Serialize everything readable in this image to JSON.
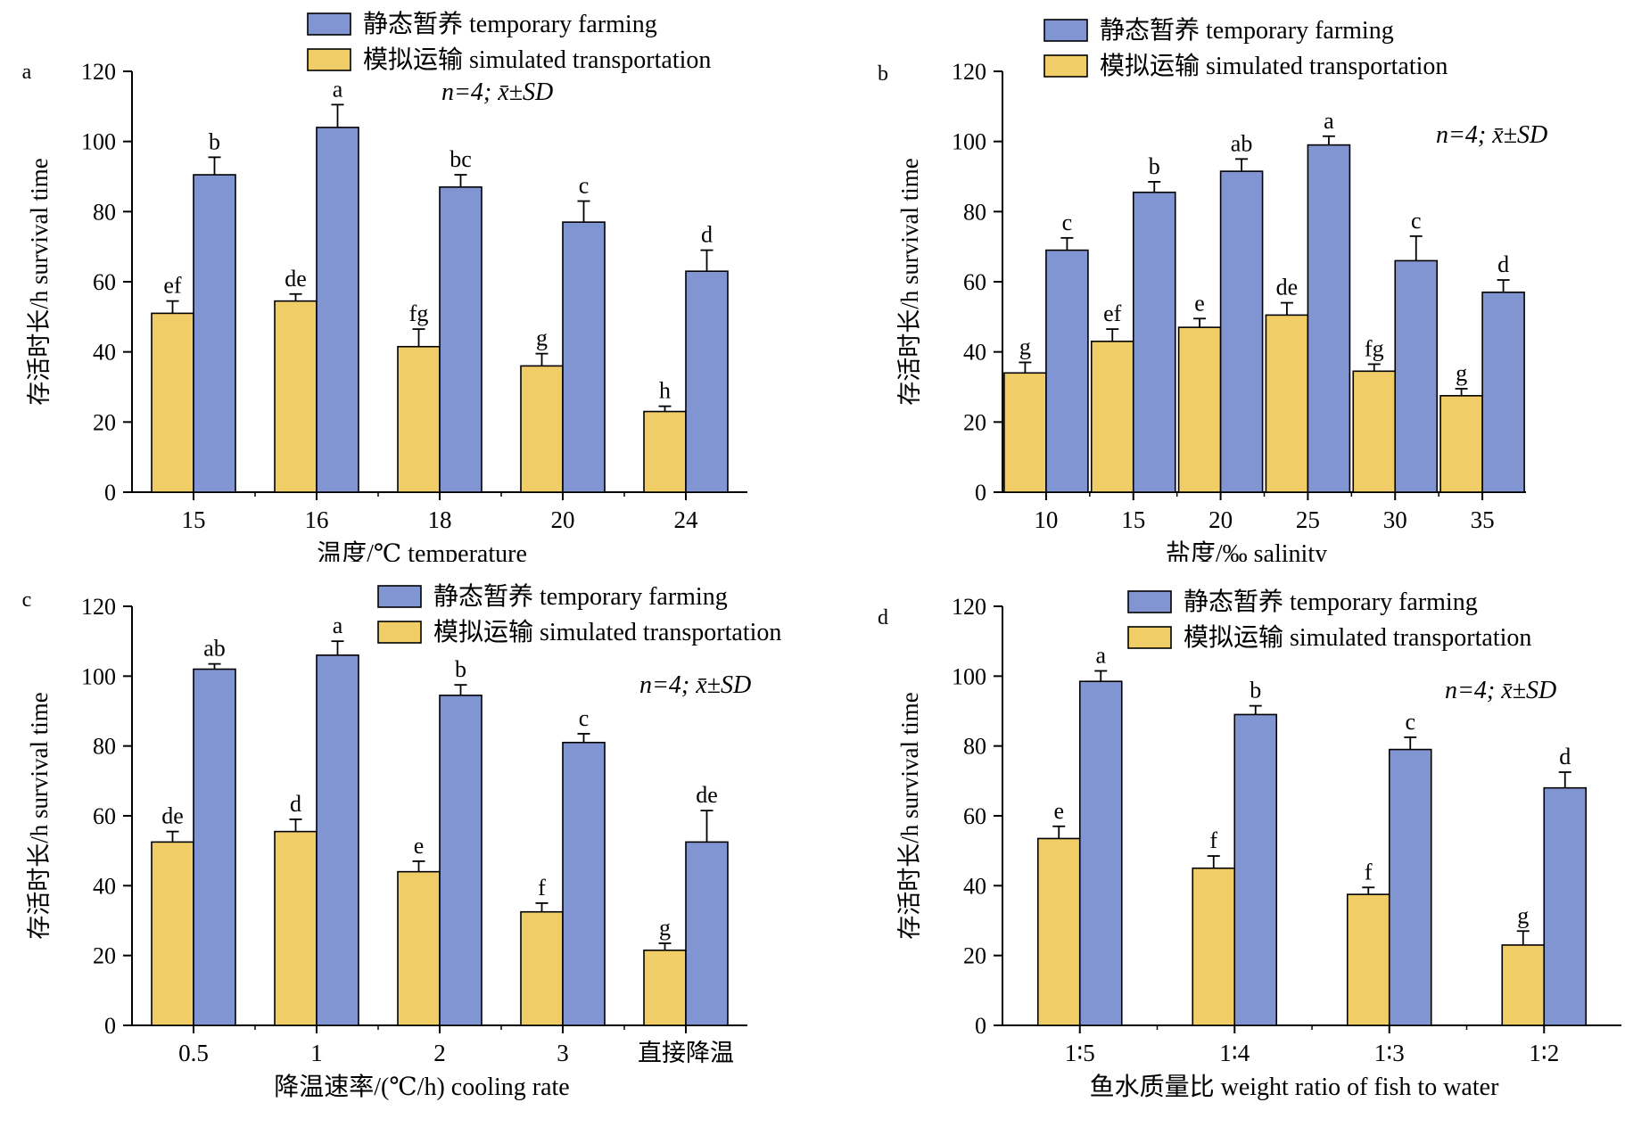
{
  "legend": {
    "temporary": "静态暂养 temporary farming",
    "simulated": "模拟运输 simulated transportation"
  },
  "annotation_stat": "n=4; x̄±SD",
  "colors": {
    "temporary": "#8195d2",
    "simulated": "#f0cd66",
    "outline": "#000000"
  },
  "chart_data": [
    {
      "type": "bar",
      "panel_label": "a",
      "xlabel": "温度/℃ temperature",
      "ylabel": "存活时长/h survival time",
      "ylim": [
        0,
        120
      ],
      "yticks": [
        0,
        20,
        40,
        60,
        80,
        100,
        120
      ],
      "categories": [
        "15",
        "16",
        "18",
        "20",
        "24"
      ],
      "series": [
        {
          "name": "模拟运输 simulated transportation",
          "key": "simulated",
          "values": [
            51,
            54.5,
            41.5,
            36,
            23
          ],
          "errors": [
            3.5,
            2,
            5,
            3.5,
            1.5
          ],
          "letters": [
            "ef",
            "de",
            "fg",
            "g",
            "h"
          ]
        },
        {
          "name": "静态暂养 temporary farming",
          "key": "temporary",
          "values": [
            90.5,
            104,
            87,
            77,
            63
          ],
          "errors": [
            5,
            6.5,
            3.5,
            6,
            6
          ],
          "letters": [
            "b",
            "a",
            "bc",
            "c",
            "d"
          ]
        }
      ]
    },
    {
      "type": "bar",
      "panel_label": "b",
      "xlabel": "盐度/‰ salinity",
      "ylabel": "存活时长/h survival time",
      "ylim": [
        0,
        120
      ],
      "yticks": [
        0,
        20,
        40,
        60,
        80,
        100,
        120
      ],
      "categories": [
        "10",
        "15",
        "20",
        "25",
        "30",
        "35"
      ],
      "series": [
        {
          "name": "模拟运输 simulated transportation",
          "key": "simulated",
          "values": [
            34,
            43,
            47,
            50.5,
            34.5,
            27.5
          ],
          "errors": [
            3,
            3.5,
            2.5,
            3.5,
            2,
            2
          ],
          "letters": [
            "g",
            "ef",
            "e",
            "de",
            "fg",
            "g"
          ]
        },
        {
          "name": "静态暂养 temporary farming",
          "key": "temporary",
          "values": [
            69,
            85.5,
            91.5,
            99,
            66,
            57
          ],
          "errors": [
            3.5,
            3,
            3.5,
            2.5,
            7,
            3.5
          ],
          "letters": [
            "c",
            "b",
            "ab",
            "a",
            "c",
            "d"
          ]
        }
      ]
    },
    {
      "type": "bar",
      "panel_label": "c",
      "xlabel": "降温速率/(℃/h) cooling rate",
      "ylabel": "存活时长/h survival time",
      "ylim": [
        0,
        120
      ],
      "yticks": [
        0,
        20,
        40,
        60,
        80,
        100,
        120
      ],
      "categories": [
        "0.5",
        "1",
        "2",
        "3",
        "直接降温"
      ],
      "series": [
        {
          "name": "模拟运输 simulated transportation",
          "key": "simulated",
          "values": [
            52.5,
            55.5,
            44,
            32.5,
            21.5
          ],
          "errors": [
            3,
            3.5,
            3,
            2.5,
            2
          ],
          "letters": [
            "de",
            "d",
            "e",
            "f",
            "g"
          ]
        },
        {
          "name": "静态暂养 temporary farming",
          "key": "temporary",
          "values": [
            102,
            106,
            94.5,
            81,
            52.5
          ],
          "errors": [
            1.5,
            4,
            3,
            2.5,
            9
          ],
          "letters": [
            "ab",
            "a",
            "b",
            "c",
            "de"
          ]
        }
      ]
    },
    {
      "type": "bar",
      "panel_label": "d",
      "xlabel": "鱼水质量比 weight ratio of fish to water",
      "ylabel": "存活时长/h survival time",
      "ylim": [
        0,
        120
      ],
      "yticks": [
        0,
        20,
        40,
        60,
        80,
        100,
        120
      ],
      "categories": [
        "1∶5",
        "1∶4",
        "1∶3",
        "1∶2"
      ],
      "series": [
        {
          "name": "模拟运输 simulated transportation",
          "key": "simulated",
          "values": [
            53.5,
            45,
            37.5,
            23
          ],
          "errors": [
            3.5,
            3.5,
            2,
            4
          ],
          "letters": [
            "e",
            "f",
            "f",
            "g"
          ]
        },
        {
          "name": "静态暂养 temporary farming",
          "key": "temporary",
          "values": [
            98.5,
            89,
            79,
            68
          ],
          "errors": [
            3,
            2.5,
            3.5,
            4.5
          ],
          "letters": [
            "a",
            "b",
            "c",
            "d"
          ]
        }
      ]
    }
  ]
}
